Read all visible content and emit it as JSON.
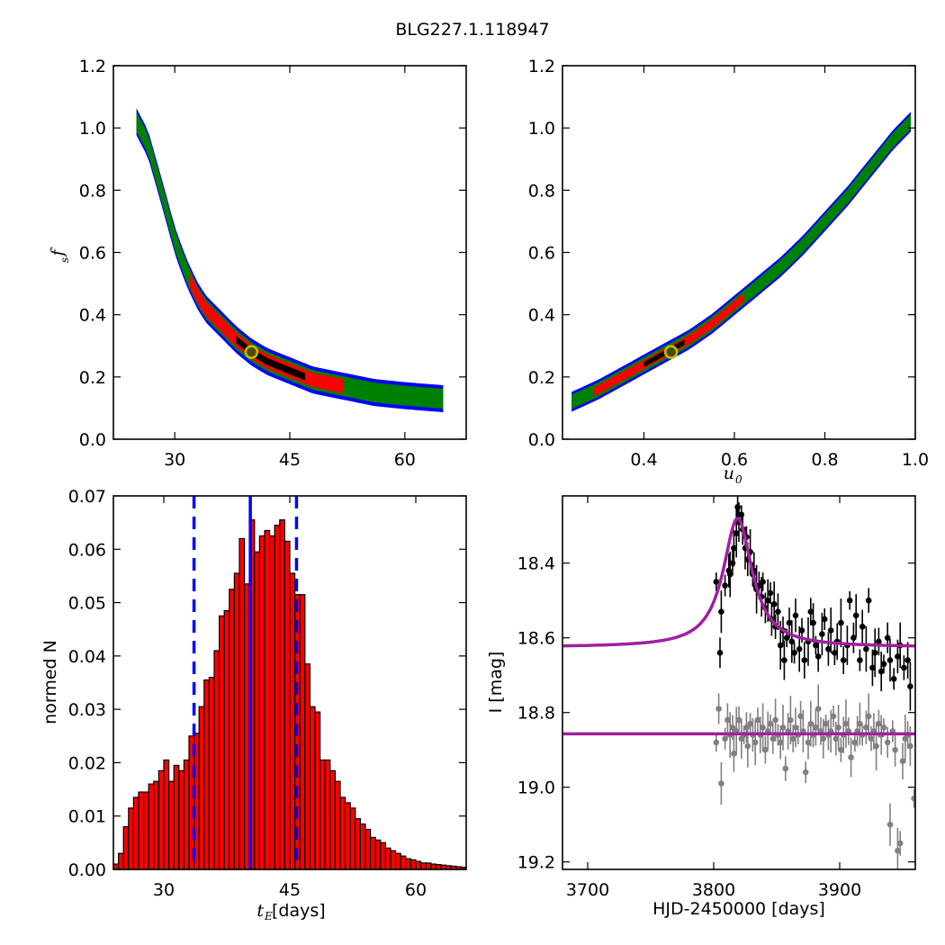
{
  "figure": {
    "title": "BLG227.1.118947"
  },
  "colors": {
    "outer": "#0000ff",
    "mid": "#008000",
    "inner": "#ff0000",
    "best": "#000000",
    "marker_edge": "#bfbf00",
    "hist_fill": "#ff0000",
    "vline": "#0000ff",
    "model": "#a020a0",
    "data1": "#000000",
    "data2": "#808080"
  },
  "chart_data": [
    {
      "type": "heatmap",
      "panel": "top-left",
      "xlabel": "",
      "ylabel": "f_s",
      "xlim": [
        22,
        68
      ],
      "ylim": [
        0.0,
        1.2
      ],
      "xticks": [
        30,
        45,
        60
      ],
      "yticks": [
        0.0,
        0.2,
        0.4,
        0.6,
        0.8,
        1.0,
        1.2
      ],
      "ridge": [
        [
          25.0,
          1.02
        ],
        [
          26.5,
          0.95
        ],
        [
          28,
          0.82
        ],
        [
          29,
          0.73
        ],
        [
          30,
          0.64
        ],
        [
          31,
          0.57
        ],
        [
          32,
          0.51
        ],
        [
          33,
          0.46
        ],
        [
          34,
          0.42
        ],
        [
          36,
          0.37
        ],
        [
          38,
          0.32
        ],
        [
          40,
          0.28
        ],
        [
          42,
          0.25
        ],
        [
          45,
          0.22
        ],
        [
          48,
          0.19
        ],
        [
          52,
          0.17
        ],
        [
          56,
          0.15
        ],
        [
          60,
          0.14
        ],
        [
          65,
          0.13
        ]
      ],
      "red_range": [
        32,
        52
      ],
      "black_range": [
        38,
        47
      ],
      "best_fit": [
        40.0,
        0.28
      ]
    },
    {
      "type": "heatmap",
      "panel": "top-right",
      "xlabel": "u_0",
      "ylabel": "",
      "xlim": [
        0.22,
        1.0
      ],
      "ylim": [
        0.0,
        1.2
      ],
      "xticks": [
        0.4,
        0.6,
        0.8,
        1.0
      ],
      "yticks": [
        0.0,
        0.2,
        0.4,
        0.6,
        0.8,
        1.0,
        1.2
      ],
      "ridge": [
        [
          0.24,
          0.12
        ],
        [
          0.3,
          0.16
        ],
        [
          0.35,
          0.2
        ],
        [
          0.4,
          0.24
        ],
        [
          0.45,
          0.28
        ],
        [
          0.5,
          0.32
        ],
        [
          0.55,
          0.37
        ],
        [
          0.6,
          0.43
        ],
        [
          0.65,
          0.49
        ],
        [
          0.7,
          0.55
        ],
        [
          0.75,
          0.62
        ],
        [
          0.8,
          0.7
        ],
        [
          0.85,
          0.78
        ],
        [
          0.9,
          0.87
        ],
        [
          0.95,
          0.96
        ],
        [
          0.99,
          1.02
        ]
      ],
      "red_range": [
        0.29,
        0.62
      ],
      "black_range": [
        0.4,
        0.49
      ],
      "best_fit": [
        0.46,
        0.28
      ]
    },
    {
      "type": "bar",
      "panel": "bottom-left",
      "xlabel": "t_E",
      "xlabel_unit": " [days]",
      "ylabel": "normed N",
      "xlim": [
        24,
        66
      ],
      "ylim": [
        0.0,
        0.07
      ],
      "xticks": [
        30,
        45,
        60
      ],
      "yticks": [
        0.0,
        0.01,
        0.02,
        0.03,
        0.04,
        0.05,
        0.06,
        0.07
      ],
      "bin_start": 24.0,
      "bin_width": 0.6,
      "values": [
        0.001,
        0.003,
        0.008,
        0.0115,
        0.0135,
        0.0145,
        0.0145,
        0.016,
        0.0165,
        0.0185,
        0.0205,
        0.0165,
        0.0195,
        0.0185,
        0.0205,
        0.025,
        0.0255,
        0.0305,
        0.0355,
        0.036,
        0.041,
        0.0475,
        0.0485,
        0.0525,
        0.0555,
        0.062,
        0.0535,
        0.0655,
        0.0595,
        0.0625,
        0.0635,
        0.0625,
        0.0645,
        0.0655,
        0.0615,
        0.0555,
        0.0515,
        0.0515,
        0.0385,
        0.0305,
        0.0295,
        0.0205,
        0.0205,
        0.0185,
        0.0165,
        0.0135,
        0.0125,
        0.0115,
        0.0095,
        0.0085,
        0.0075,
        0.006,
        0.0055,
        0.005,
        0.004,
        0.0035,
        0.003,
        0.0025,
        0.002,
        0.0018,
        0.0015,
        0.0012,
        0.0012,
        0.001,
        0.0009,
        0.0008,
        0.0007,
        0.0006,
        0.0005,
        0.0004
      ],
      "median": 40.3,
      "lower": 33.6,
      "upper": 45.8
    },
    {
      "type": "scatter",
      "panel": "bottom-right",
      "xlabel": "HJD-2450000 [days]",
      "ylabel": "I [mag]",
      "xlim": [
        3680,
        3960
      ],
      "ylim": [
        19.22,
        18.22
      ],
      "xticks": [
        3700,
        3800,
        3900
      ],
      "yticks": [
        18.4,
        18.6,
        18.8,
        19.0,
        19.2
      ],
      "model": {
        "t0": 3819,
        "tau": 14,
        "peak_mag": 18.28,
        "base_mag": 18.625
      },
      "offset_model_mag": 18.857,
      "series": [
        {
          "role": "primary",
          "points": [
            [
              3802,
              18.45
            ],
            [
              3805,
              18.64
            ],
            [
              3806,
              18.53
            ],
            [
              3809,
              18.46
            ],
            [
              3812,
              18.42
            ],
            [
              3813,
              18.43
            ],
            [
              3815,
              18.4
            ],
            [
              3816,
              18.36
            ],
            [
              3818,
              18.32
            ],
            [
              3819,
              18.25
            ],
            [
              3820,
              18.29
            ],
            [
              3822,
              18.27
            ],
            [
              3823,
              18.31
            ],
            [
              3825,
              18.36
            ],
            [
              3826,
              18.33
            ],
            [
              3827,
              18.39
            ],
            [
              3829,
              18.37
            ],
            [
              3831,
              18.43
            ],
            [
              3832,
              18.42
            ],
            [
              3834,
              18.47
            ],
            [
              3836,
              18.46
            ],
            [
              3838,
              18.49
            ],
            [
              3839,
              18.45
            ],
            [
              3841,
              18.52
            ],
            [
              3843,
              18.5
            ],
            [
              3845,
              18.48
            ],
            [
              3846,
              18.55
            ],
            [
              3848,
              18.51
            ],
            [
              3849,
              18.57
            ],
            [
              3851,
              18.53
            ],
            [
              3853,
              18.62
            ],
            [
              3855,
              18.58
            ],
            [
              3856,
              18.66
            ],
            [
              3858,
              18.6
            ],
            [
              3860,
              18.56
            ],
            [
              3862,
              18.61
            ],
            [
              3864,
              18.64
            ],
            [
              3865,
              18.54
            ],
            [
              3868,
              18.63
            ],
            [
              3870,
              18.58
            ],
            [
              3872,
              18.66
            ],
            [
              3875,
              18.61
            ],
            [
              3877,
              18.53
            ],
            [
              3879,
              18.56
            ],
            [
              3881,
              18.62
            ],
            [
              3883,
              18.65
            ],
            [
              3886,
              18.59
            ],
            [
              3888,
              18.55
            ],
            [
              3891,
              18.63
            ],
            [
              3893,
              18.58
            ],
            [
              3896,
              18.64
            ],
            [
              3898,
              18.61
            ],
            [
              3901,
              18.56
            ],
            [
              3903,
              18.66
            ],
            [
              3906,
              18.62
            ],
            [
              3908,
              18.5
            ],
            [
              3911,
              18.6
            ],
            [
              3913,
              18.54
            ],
            [
              3916,
              18.66
            ],
            [
              3918,
              18.57
            ],
            [
              3921,
              18.63
            ],
            [
              3923,
              18.5
            ],
            [
              3926,
              18.68
            ],
            [
              3928,
              18.64
            ],
            [
              3931,
              18.61
            ],
            [
              3933,
              18.69
            ],
            [
              3935,
              18.67
            ],
            [
              3938,
              18.6
            ],
            [
              3940,
              18.66
            ],
            [
              3943,
              18.71
            ],
            [
              3946,
              18.65
            ],
            [
              3948,
              18.62
            ],
            [
              3951,
              18.68
            ],
            [
              3954,
              18.66
            ],
            [
              3956,
              18.73
            ]
          ]
        },
        {
          "role": "offset",
          "points": [
            [
              3802,
              18.88
            ],
            [
              3804,
              18.79
            ],
            [
              3806,
              18.99
            ],
            [
              3809,
              18.87
            ],
            [
              3811,
              18.82
            ],
            [
              3813,
              18.86
            ],
            [
              3815,
              18.84
            ],
            [
              3816,
              18.91
            ],
            [
              3818,
              18.85
            ],
            [
              3820,
              18.82
            ],
            [
              3822,
              18.87
            ],
            [
              3824,
              18.86
            ],
            [
              3826,
              18.84
            ],
            [
              3827,
              18.89
            ],
            [
              3829,
              18.83
            ],
            [
              3831,
              18.86
            ],
            [
              3833,
              18.88
            ],
            [
              3835,
              18.82
            ],
            [
              3837,
              18.86
            ],
            [
              3839,
              18.84
            ],
            [
              3841,
              18.9
            ],
            [
              3843,
              18.85
            ],
            [
              3845,
              18.83
            ],
            [
              3847,
              18.87
            ],
            [
              3849,
              18.82
            ],
            [
              3851,
              18.86
            ],
            [
              3853,
              18.88
            ],
            [
              3855,
              18.84
            ],
            [
              3857,
              18.95
            ],
            [
              3859,
              18.85
            ],
            [
              3861,
              18.82
            ],
            [
              3863,
              18.87
            ],
            [
              3865,
              18.84
            ],
            [
              3867,
              18.86
            ],
            [
              3869,
              18.81
            ],
            [
              3871,
              18.85
            ],
            [
              3873,
              18.96
            ],
            [
              3875,
              18.88
            ],
            [
              3877,
              18.83
            ],
            [
              3879,
              18.86
            ],
            [
              3881,
              18.84
            ],
            [
              3883,
              18.79
            ],
            [
              3885,
              18.85
            ],
            [
              3887,
              18.87
            ],
            [
              3889,
              18.83
            ],
            [
              3891,
              18.86
            ],
            [
              3893,
              18.85
            ],
            [
              3895,
              18.81
            ],
            [
              3897,
              18.87
            ],
            [
              3899,
              18.84
            ],
            [
              3901,
              18.9
            ],
            [
              3903,
              18.86
            ],
            [
              3905,
              18.83
            ],
            [
              3907,
              18.85
            ],
            [
              3909,
              18.92
            ],
            [
              3912,
              18.88
            ],
            [
              3914,
              18.85
            ],
            [
              3916,
              18.83
            ],
            [
              3918,
              18.86
            ],
            [
              3921,
              18.84
            ],
            [
              3923,
              18.81
            ],
            [
              3925,
              18.87
            ],
            [
              3927,
              18.85
            ],
            [
              3929,
              18.89
            ],
            [
              3931,
              18.83
            ],
            [
              3933,
              18.86
            ],
            [
              3935,
              18.84
            ],
            [
              3938,
              18.88
            ],
            [
              3940,
              19.1
            ],
            [
              3942,
              18.85
            ],
            [
              3944,
              18.9
            ],
            [
              3946,
              19.17
            ],
            [
              3948,
              19.15
            ],
            [
              3950,
              18.93
            ],
            [
              3952,
              18.87
            ],
            [
              3954,
              18.86
            ],
            [
              3956,
              18.89
            ],
            [
              3959,
              19.03
            ]
          ]
        }
      ]
    }
  ]
}
